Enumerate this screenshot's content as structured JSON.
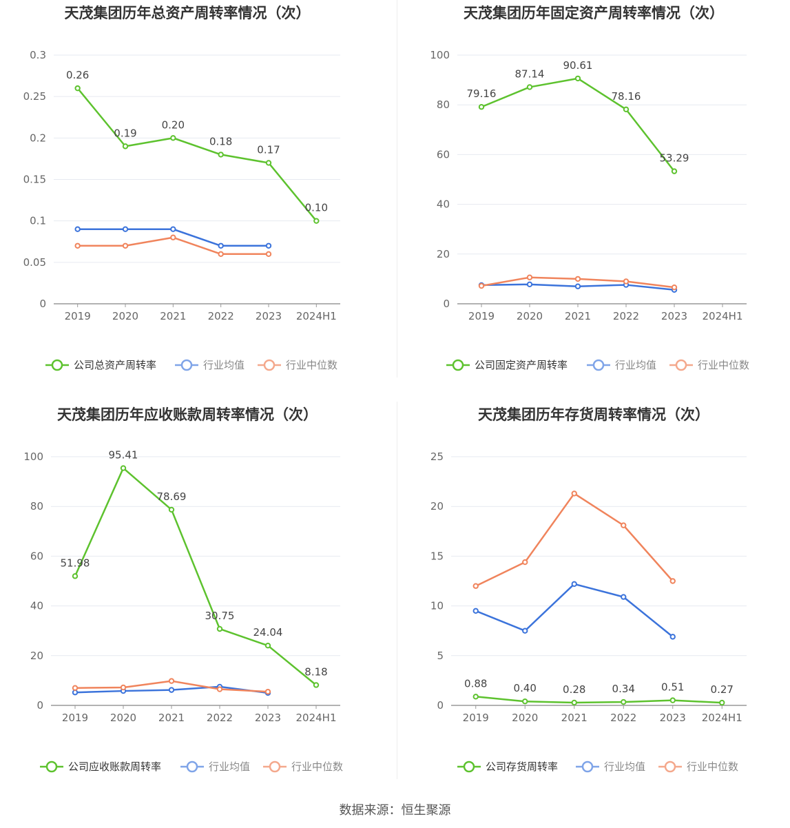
{
  "source_label": "数据来源：恒生聚源",
  "colors": {
    "company": "#5dc22e",
    "avg": "#3b73db",
    "median": "#f0845c",
    "avg_legend": "#7fa4e8",
    "median_legend": "#f4a88c"
  },
  "chart_data": [
    {
      "type": "line",
      "title": "天茂集团历年总资产周转率情况（次）",
      "categories": [
        "2019",
        "2020",
        "2021",
        "2022",
        "2023",
        "2024H1"
      ],
      "ylim": [
        0,
        0.3
      ],
      "yticks": [
        0,
        0.05,
        0.1,
        0.15,
        0.2,
        0.25,
        0.3
      ],
      "ytick_labels": [
        "0",
        "0.05",
        "0.1",
        "0.15",
        "0.2",
        "0.25",
        "0.3"
      ],
      "grid": true,
      "legend_position": "bottom",
      "series": [
        {
          "name": "公司总资产周转率",
          "role": "company",
          "values": [
            0.26,
            0.19,
            0.2,
            0.18,
            0.17,
            0.1
          ],
          "labels": [
            "0.26",
            "0.19",
            "0.20",
            "0.18",
            "0.17",
            "0.10"
          ]
        },
        {
          "name": "行业均值",
          "role": "avg",
          "values": [
            0.09,
            0.09,
            0.09,
            0.07,
            0.07,
            null
          ]
        },
        {
          "name": "行业中位数",
          "role": "median",
          "values": [
            0.07,
            0.07,
            0.08,
            0.06,
            0.06,
            null
          ]
        }
      ]
    },
    {
      "type": "line",
      "title": "天茂集团历年固定资产周转率情况（次）",
      "categories": [
        "2019",
        "2020",
        "2021",
        "2022",
        "2023",
        "2024H1"
      ],
      "ylim": [
        0,
        100
      ],
      "yticks": [
        0,
        20,
        40,
        60,
        80,
        100
      ],
      "ytick_labels": [
        "0",
        "20",
        "40",
        "60",
        "80",
        "100"
      ],
      "grid": true,
      "legend_position": "bottom",
      "series": [
        {
          "name": "公司固定资产周转率",
          "role": "company",
          "values": [
            79.16,
            87.14,
            90.61,
            78.16,
            53.29,
            null
          ],
          "labels": [
            "79.16",
            "87.14",
            "90.61",
            "78.16",
            "53.29",
            ""
          ]
        },
        {
          "name": "行业均值",
          "role": "avg",
          "values": [
            7.5,
            7.8,
            7.0,
            7.6,
            5.6,
            null
          ]
        },
        {
          "name": "行业中位数",
          "role": "median",
          "values": [
            7.2,
            10.6,
            10.0,
            9.0,
            6.6,
            null
          ]
        }
      ]
    },
    {
      "type": "line",
      "title": "天茂集团历年应收账款周转率情况（次）",
      "categories": [
        "2019",
        "2020",
        "2021",
        "2022",
        "2023",
        "2024H1"
      ],
      "ylim": [
        0,
        100
      ],
      "yticks": [
        0,
        20,
        40,
        60,
        80,
        100
      ],
      "ytick_labels": [
        "0",
        "20",
        "40",
        "60",
        "80",
        "100"
      ],
      "grid": true,
      "legend_position": "bottom",
      "series": [
        {
          "name": "公司应收账款周转率",
          "role": "company",
          "values": [
            51.98,
            95.41,
            78.69,
            30.75,
            24.04,
            8.18
          ],
          "labels": [
            "51.98",
            "95.41",
            "78.69",
            "30.75",
            "24.04",
            "8.18"
          ]
        },
        {
          "name": "行业均值",
          "role": "avg",
          "values": [
            5.2,
            5.8,
            6.2,
            7.5,
            5.0,
            null
          ]
        },
        {
          "name": "行业中位数",
          "role": "median",
          "values": [
            7.0,
            7.2,
            9.8,
            6.5,
            5.5,
            null
          ]
        }
      ]
    },
    {
      "type": "line",
      "title": "天茂集团历年存货周转率情况（次）",
      "categories": [
        "2019",
        "2020",
        "2021",
        "2022",
        "2023",
        "2024H1"
      ],
      "ylim": [
        0,
        25
      ],
      "yticks": [
        0,
        5,
        10,
        15,
        20,
        25
      ],
      "ytick_labels": [
        "0",
        "5",
        "10",
        "15",
        "20",
        "25"
      ],
      "grid": true,
      "legend_position": "bottom",
      "series": [
        {
          "name": "公司存货周转率",
          "role": "company",
          "values": [
            0.88,
            0.4,
            0.28,
            0.34,
            0.51,
            0.27
          ],
          "labels": [
            "0.88",
            "0.40",
            "0.28",
            "0.34",
            "0.51",
            "0.27"
          ]
        },
        {
          "name": "行业均值",
          "role": "avg",
          "values": [
            9.5,
            7.5,
            12.2,
            10.9,
            6.9,
            null
          ]
        },
        {
          "name": "行业中位数",
          "role": "median",
          "values": [
            12.0,
            14.4,
            21.3,
            18.1,
            12.5,
            null
          ]
        }
      ]
    }
  ]
}
